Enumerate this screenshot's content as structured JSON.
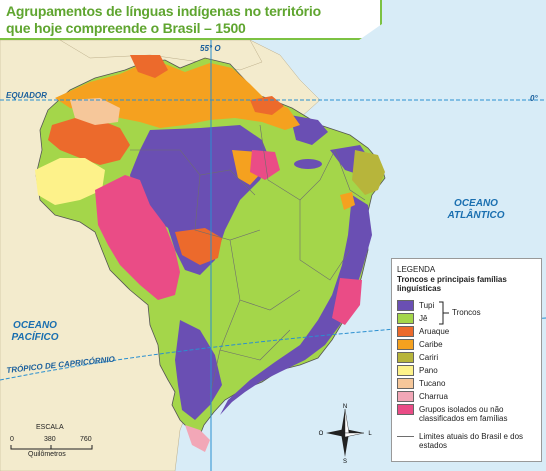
{
  "title": {
    "line1": "Agrupamentos de línguas indígenas no território",
    "line2": "que hoje compreende o Brasil – 1500"
  },
  "map_labels": {
    "equator": "EQUADOR",
    "meridian": "55° O",
    "zero_deg": "0°",
    "tropic": "TRÓPICO DE CAPRICÓRNIO",
    "atlantic": [
      "OCEANO",
      "ATLÂNTICO"
    ],
    "pacific": [
      "OCEANO",
      "PACÍFICO"
    ]
  },
  "legend": {
    "title": "LEGENDA",
    "subtitle": "Troncos e principais famílias linguísticas",
    "troncos_label": "Troncos",
    "items": [
      {
        "label": "Tupi",
        "color": "#6a4fb3"
      },
      {
        "label": "Jê",
        "color": "#a4d64a"
      },
      {
        "label": "Aruaque",
        "color": "#ec6a2c"
      },
      {
        "label": "Caribe",
        "color": "#f5a11f"
      },
      {
        "label": "Cariri",
        "color": "#b7b53b"
      },
      {
        "label": "Pano",
        "color": "#fdf28a"
      },
      {
        "label": "Tucano",
        "color": "#f6c79a"
      },
      {
        "label": "Charrua",
        "color": "#f2a7b7"
      },
      {
        "label": "Grupos isolados ou não classificados em famílias",
        "color": "#ea4c86"
      }
    ],
    "boundary_label": "Limites atuais do Brasil e dos estados"
  },
  "scale": {
    "title": "ESCALA",
    "ticks": [
      "0",
      "380",
      "760"
    ],
    "unit": "Quilômetros"
  },
  "compass": {
    "n": "N",
    "s": "S",
    "l": "L",
    "o": "O"
  },
  "colors": {
    "ocean": "#d8ecf7",
    "land_outside": "#f3ebcd",
    "border": "#7cc242",
    "line_blue": "#2a8fd0"
  }
}
